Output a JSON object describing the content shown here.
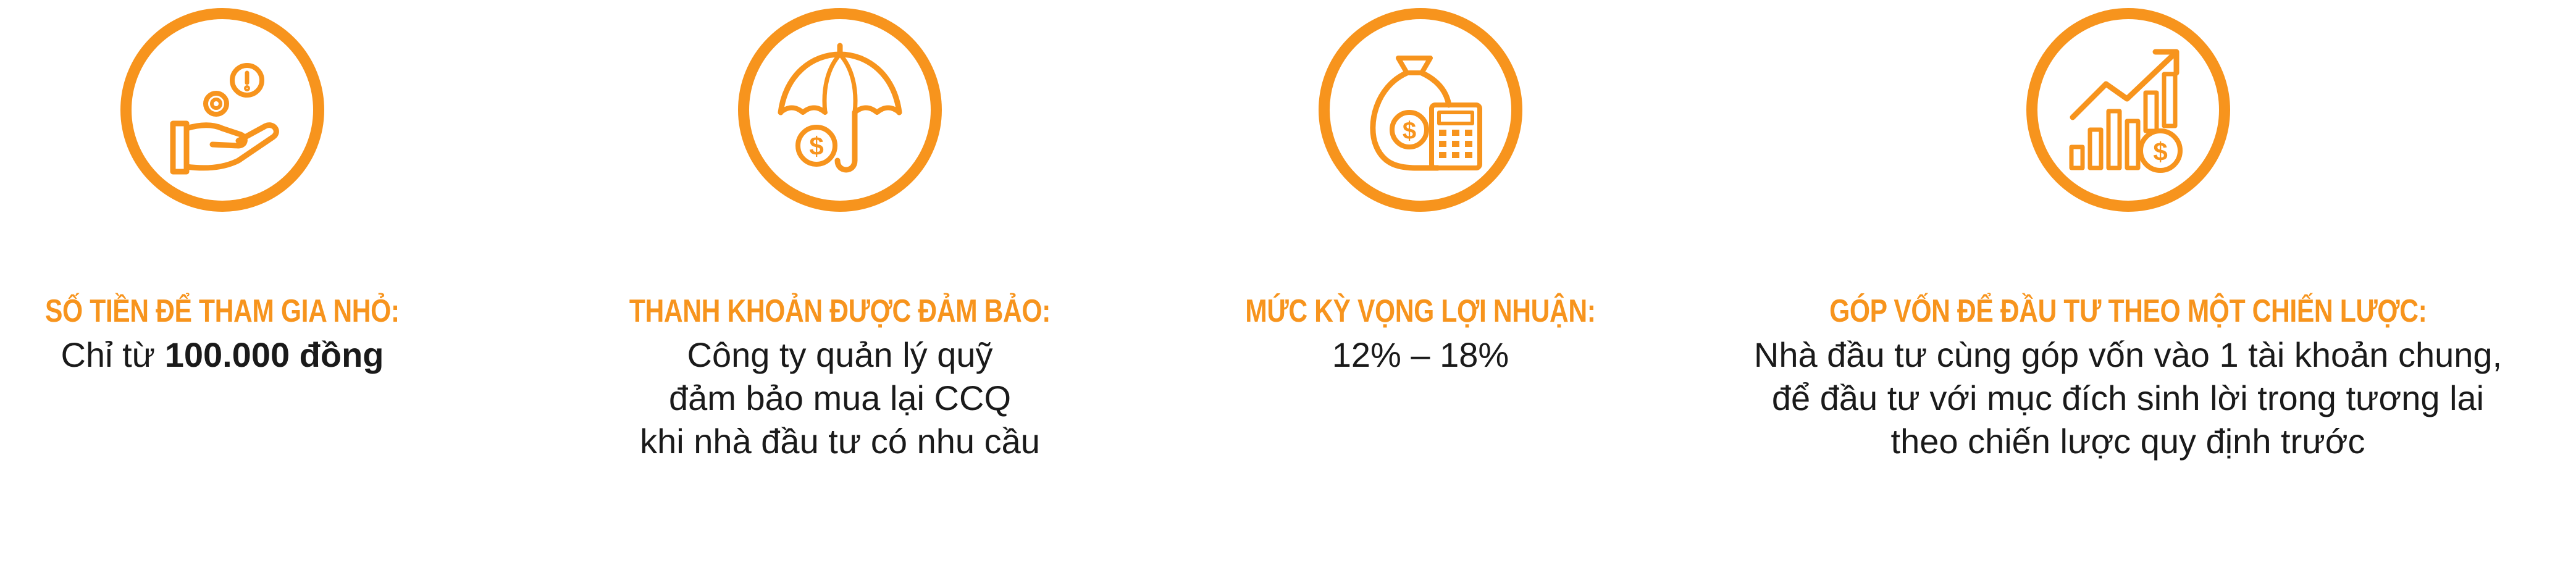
{
  "colors": {
    "accent": "#f7941d",
    "text": "#1a1a1a",
    "background": "#ffffff"
  },
  "features": [
    {
      "icon": "hand-coins-icon",
      "title": "SỐ TIỀN ĐỂ THAM GIA NHỎ:",
      "text_prefix": "Chỉ từ ",
      "text_bold": "100.000 đồng"
    },
    {
      "icon": "umbrella-dollar-icon",
      "title": "THANH KHOẢN ĐƯỢC ĐẢM BẢO:",
      "lines": [
        "Công ty quản lý quỹ",
        "đảm bảo mua lại CCQ",
        "khi nhà đầu tư có nhu cầu"
      ]
    },
    {
      "icon": "money-bag-calculator-icon",
      "title": "MỨC KỲ VỌNG LỢI NHUẬN:",
      "lines": [
        "12% – 18%"
      ]
    },
    {
      "icon": "growth-chart-dollar-icon",
      "title": "GÓP VỐN ĐỂ ĐẦU TƯ THEO MỘT CHIẾN LƯỢC:",
      "lines": [
        "Nhà đầu tư cùng góp vốn vào 1 tài khoản chung,",
        "để đầu tư với mục đích sinh lời trong tương lai",
        "theo chiến lược quy định trước"
      ]
    }
  ]
}
